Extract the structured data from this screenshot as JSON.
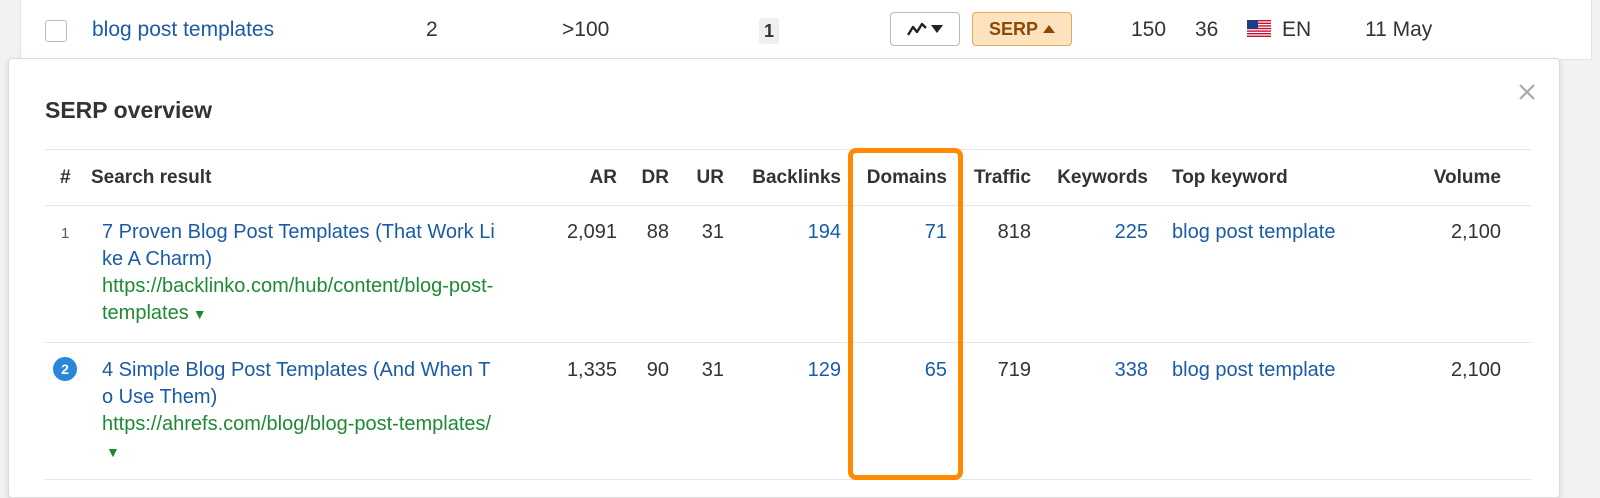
{
  "top_row": {
    "keyword": "blog post templates",
    "position": "2",
    "volume": ">100",
    "kd": "1",
    "serp_label": "SERP",
    "metric_a": "150",
    "metric_b": "36",
    "language": "EN",
    "date": "11 May"
  },
  "panel": {
    "title": "SERP overview",
    "headers": {
      "rank": "#",
      "result": "Search result",
      "ar": "AR",
      "dr": "DR",
      "ur": "UR",
      "backlinks": "Backlinks",
      "domains": "Domains",
      "traffic": "Traffic",
      "keywords": "Keywords",
      "top_keyword": "Top keyword",
      "volume": "Volume"
    },
    "rows": [
      {
        "rank": "1",
        "title": "7 Proven Blog Post Templates (That Work Like A Charm)",
        "url": "https://backlinko.com/hub/content/blog-post-templates",
        "ar": "2,091",
        "dr": "88",
        "ur": "31",
        "backlinks": "194",
        "domains": "71",
        "traffic": "818",
        "keywords": "225",
        "top_keyword": "blog post template",
        "volume": "2,100"
      },
      {
        "rank": "2",
        "title": "4 Simple Blog Post Templates (And When To Use Them)",
        "url": "https://ahrefs.com/blog/blog-post-templates/",
        "ar": "1,335",
        "dr": "90",
        "ur": "31",
        "backlinks": "129",
        "domains": "65",
        "traffic": "719",
        "keywords": "338",
        "top_keyword": "blog post template",
        "volume": "2,100"
      }
    ]
  },
  "colors": {
    "link_blue": "#1a5ba8",
    "url_green": "#1e8a33",
    "highlight_orange": "#ff8a00",
    "serp_button_bg": "#fde3bd",
    "rank_badge_blue": "#2a86d8"
  },
  "icons": [
    "checkbox",
    "trend-chart-icon",
    "caret-down-icon",
    "caret-up-icon",
    "us-flag-icon",
    "close-icon"
  ]
}
